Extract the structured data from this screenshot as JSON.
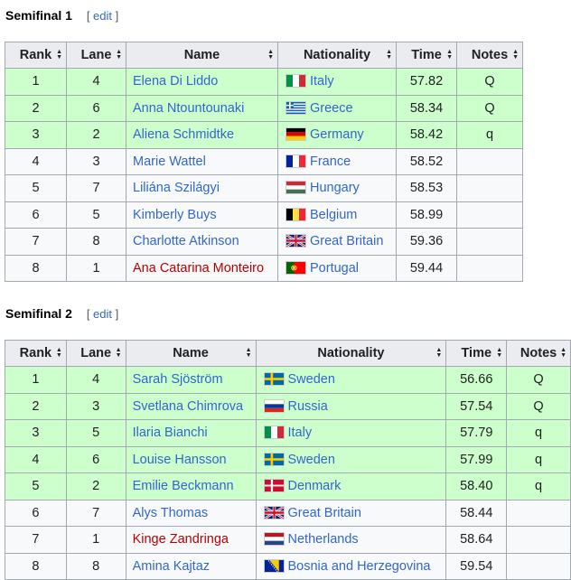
{
  "columns": {
    "rank": "Rank",
    "lane": "Lane",
    "name": "Name",
    "nationality": "Nationality",
    "time": "Time",
    "notes": "Notes"
  },
  "sections": [
    {
      "title": "Semifinal 1",
      "edit_open": "[ ",
      "edit_label": "edit",
      "edit_close": " ]",
      "rows": [
        {
          "rank": "1",
          "lane": "4",
          "name": "Elena Di Liddo",
          "nationality": "Italy",
          "flag": "italy-flag-icon",
          "time": "57.82",
          "notes": "Q",
          "qualified": true,
          "redlink": false
        },
        {
          "rank": "2",
          "lane": "6",
          "name": "Anna Ntountounaki",
          "nationality": "Greece",
          "flag": "greece-flag-icon",
          "time": "58.34",
          "notes": "Q",
          "qualified": true,
          "redlink": false
        },
        {
          "rank": "3",
          "lane": "2",
          "name": "Aliena Schmidtke",
          "nationality": "Germany",
          "flag": "germany-flag-icon",
          "time": "58.42",
          "notes": "q",
          "qualified": true,
          "redlink": false
        },
        {
          "rank": "4",
          "lane": "3",
          "name": "Marie Wattel",
          "nationality": "France",
          "flag": "france-flag-icon",
          "time": "58.52",
          "notes": "",
          "qualified": false,
          "redlink": false
        },
        {
          "rank": "5",
          "lane": "7",
          "name": "Liliána Szilágyi",
          "nationality": "Hungary",
          "flag": "hungary-flag-icon",
          "time": "58.53",
          "notes": "",
          "qualified": false,
          "redlink": false
        },
        {
          "rank": "6",
          "lane": "5",
          "name": "Kimberly Buys",
          "nationality": "Belgium",
          "flag": "belgium-flag-icon",
          "time": "58.99",
          "notes": "",
          "qualified": false,
          "redlink": false
        },
        {
          "rank": "7",
          "lane": "8",
          "name": "Charlotte Atkinson",
          "nationality": "Great Britain",
          "flag": "great-britain-flag-icon",
          "time": "59.36",
          "notes": "",
          "qualified": false,
          "redlink": false
        },
        {
          "rank": "8",
          "lane": "1",
          "name": "Ana Catarina Monteiro",
          "nationality": "Portugal",
          "flag": "portugal-flag-icon",
          "time": "59.44",
          "notes": "",
          "qualified": false,
          "redlink": true
        }
      ]
    },
    {
      "title": "Semifinal 2",
      "edit_open": "[ ",
      "edit_label": "edit",
      "edit_close": " ]",
      "rows": [
        {
          "rank": "1",
          "lane": "4",
          "name": "Sarah Sjöström",
          "nationality": "Sweden",
          "flag": "sweden-flag-icon",
          "time": "56.66",
          "notes": "Q",
          "qualified": true,
          "redlink": false
        },
        {
          "rank": "2",
          "lane": "3",
          "name": "Svetlana Chimrova",
          "nationality": "Russia",
          "flag": "russia-flag-icon",
          "time": "57.54",
          "notes": "Q",
          "qualified": true,
          "redlink": false
        },
        {
          "rank": "3",
          "lane": "5",
          "name": "Ilaria Bianchi",
          "nationality": "Italy",
          "flag": "italy-flag-icon",
          "time": "57.79",
          "notes": "q",
          "qualified": true,
          "redlink": false
        },
        {
          "rank": "4",
          "lane": "6",
          "name": "Louise Hansson",
          "nationality": "Sweden",
          "flag": "sweden-flag-icon",
          "time": "57.99",
          "notes": "q",
          "qualified": true,
          "redlink": false
        },
        {
          "rank": "5",
          "lane": "2",
          "name": "Emilie Beckmann",
          "nationality": "Denmark",
          "flag": "denmark-flag-icon",
          "time": "58.40",
          "notes": "q",
          "qualified": true,
          "redlink": false
        },
        {
          "rank": "6",
          "lane": "7",
          "name": "Alys Thomas",
          "nationality": "Great Britain",
          "flag": "great-britain-flag-icon",
          "time": "58.44",
          "notes": "",
          "qualified": false,
          "redlink": false
        },
        {
          "rank": "7",
          "lane": "1",
          "name": "Kinge Zandringa",
          "nationality": "Netherlands",
          "flag": "netherlands-flag-icon",
          "time": "58.64",
          "notes": "",
          "qualified": false,
          "redlink": true
        },
        {
          "rank": "8",
          "lane": "8",
          "name": "Amina Kajtaz",
          "nationality": "Bosnia and Herzegovina",
          "flag": "bosnia-and-herzegovina-flag-icon",
          "time": "59.54",
          "notes": "",
          "qualified": false,
          "redlink": false
        }
      ]
    }
  ]
}
